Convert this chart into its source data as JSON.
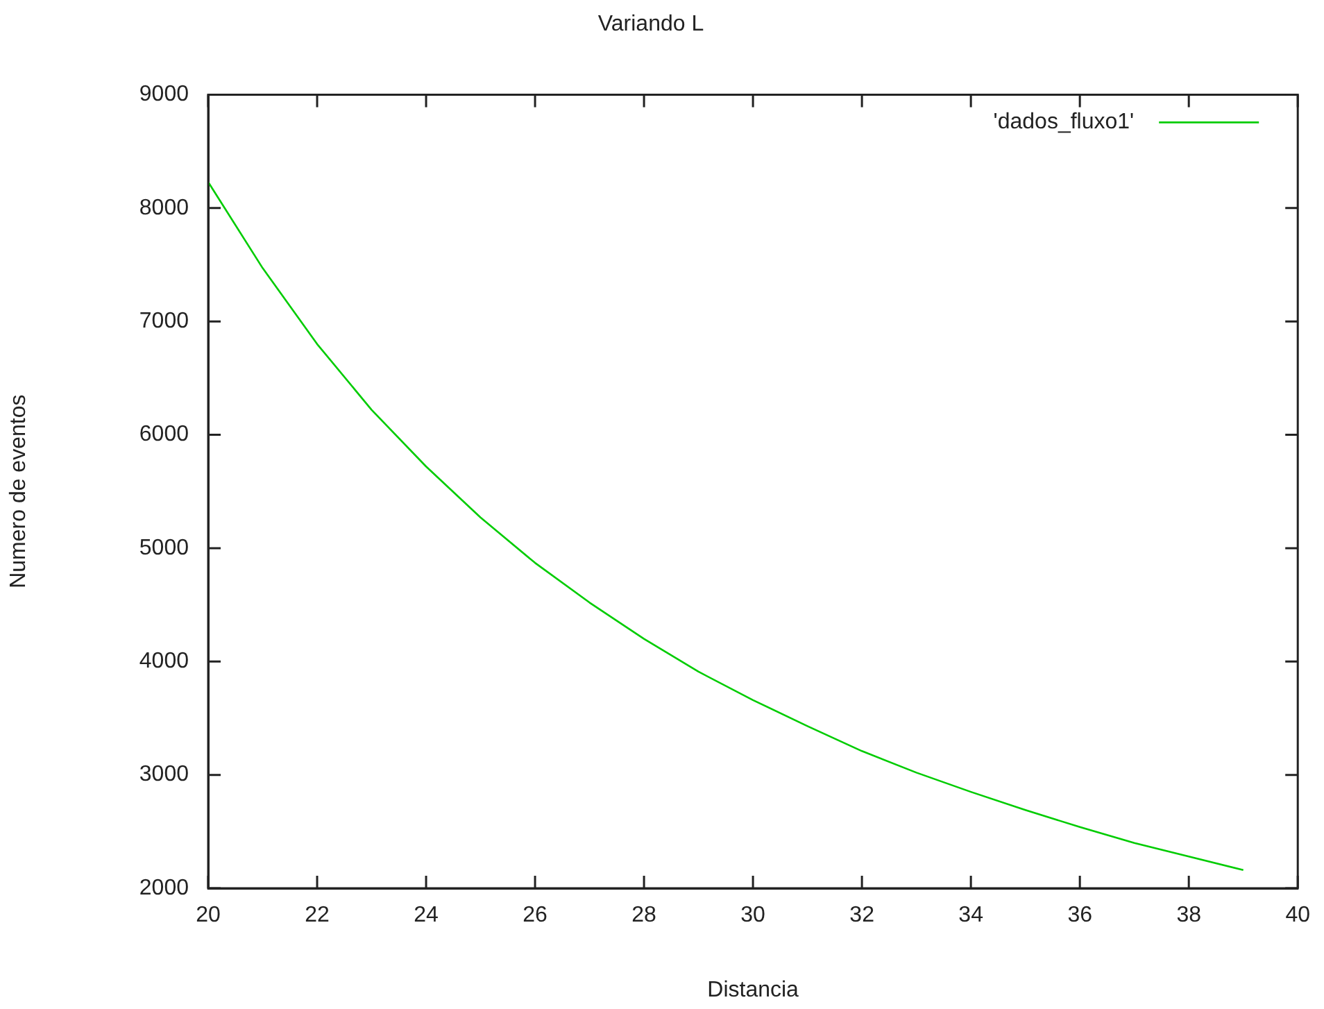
{
  "chart_data": {
    "type": "line",
    "title": "Variando L",
    "xlabel": "Distancia",
    "ylabel": "Numero de eventos",
    "x": [
      20,
      21,
      22,
      23,
      24,
      25,
      26,
      27,
      28,
      29,
      30,
      31,
      32,
      33,
      34,
      35,
      36,
      37,
      38,
      39
    ],
    "series": [
      {
        "name": "'dados_fluxo1'",
        "color": "#00cc00",
        "values": [
          8230,
          7470,
          6800,
          6220,
          5720,
          5270,
          4870,
          4520,
          4200,
          3910,
          3660,
          3430,
          3210,
          3020,
          2850,
          2690,
          2540,
          2400,
          2280,
          2160
        ]
      }
    ],
    "xlim": [
      20,
      40
    ],
    "xticks": [
      20,
      22,
      24,
      26,
      28,
      30,
      32,
      34,
      36,
      38,
      40
    ],
    "ylim": [
      2000,
      9000
    ],
    "yticks": [
      2000,
      3000,
      4000,
      5000,
      6000,
      7000,
      8000,
      9000
    ],
    "grid": false,
    "legend": "top right",
    "marker": "none",
    "line_style": "solid"
  }
}
